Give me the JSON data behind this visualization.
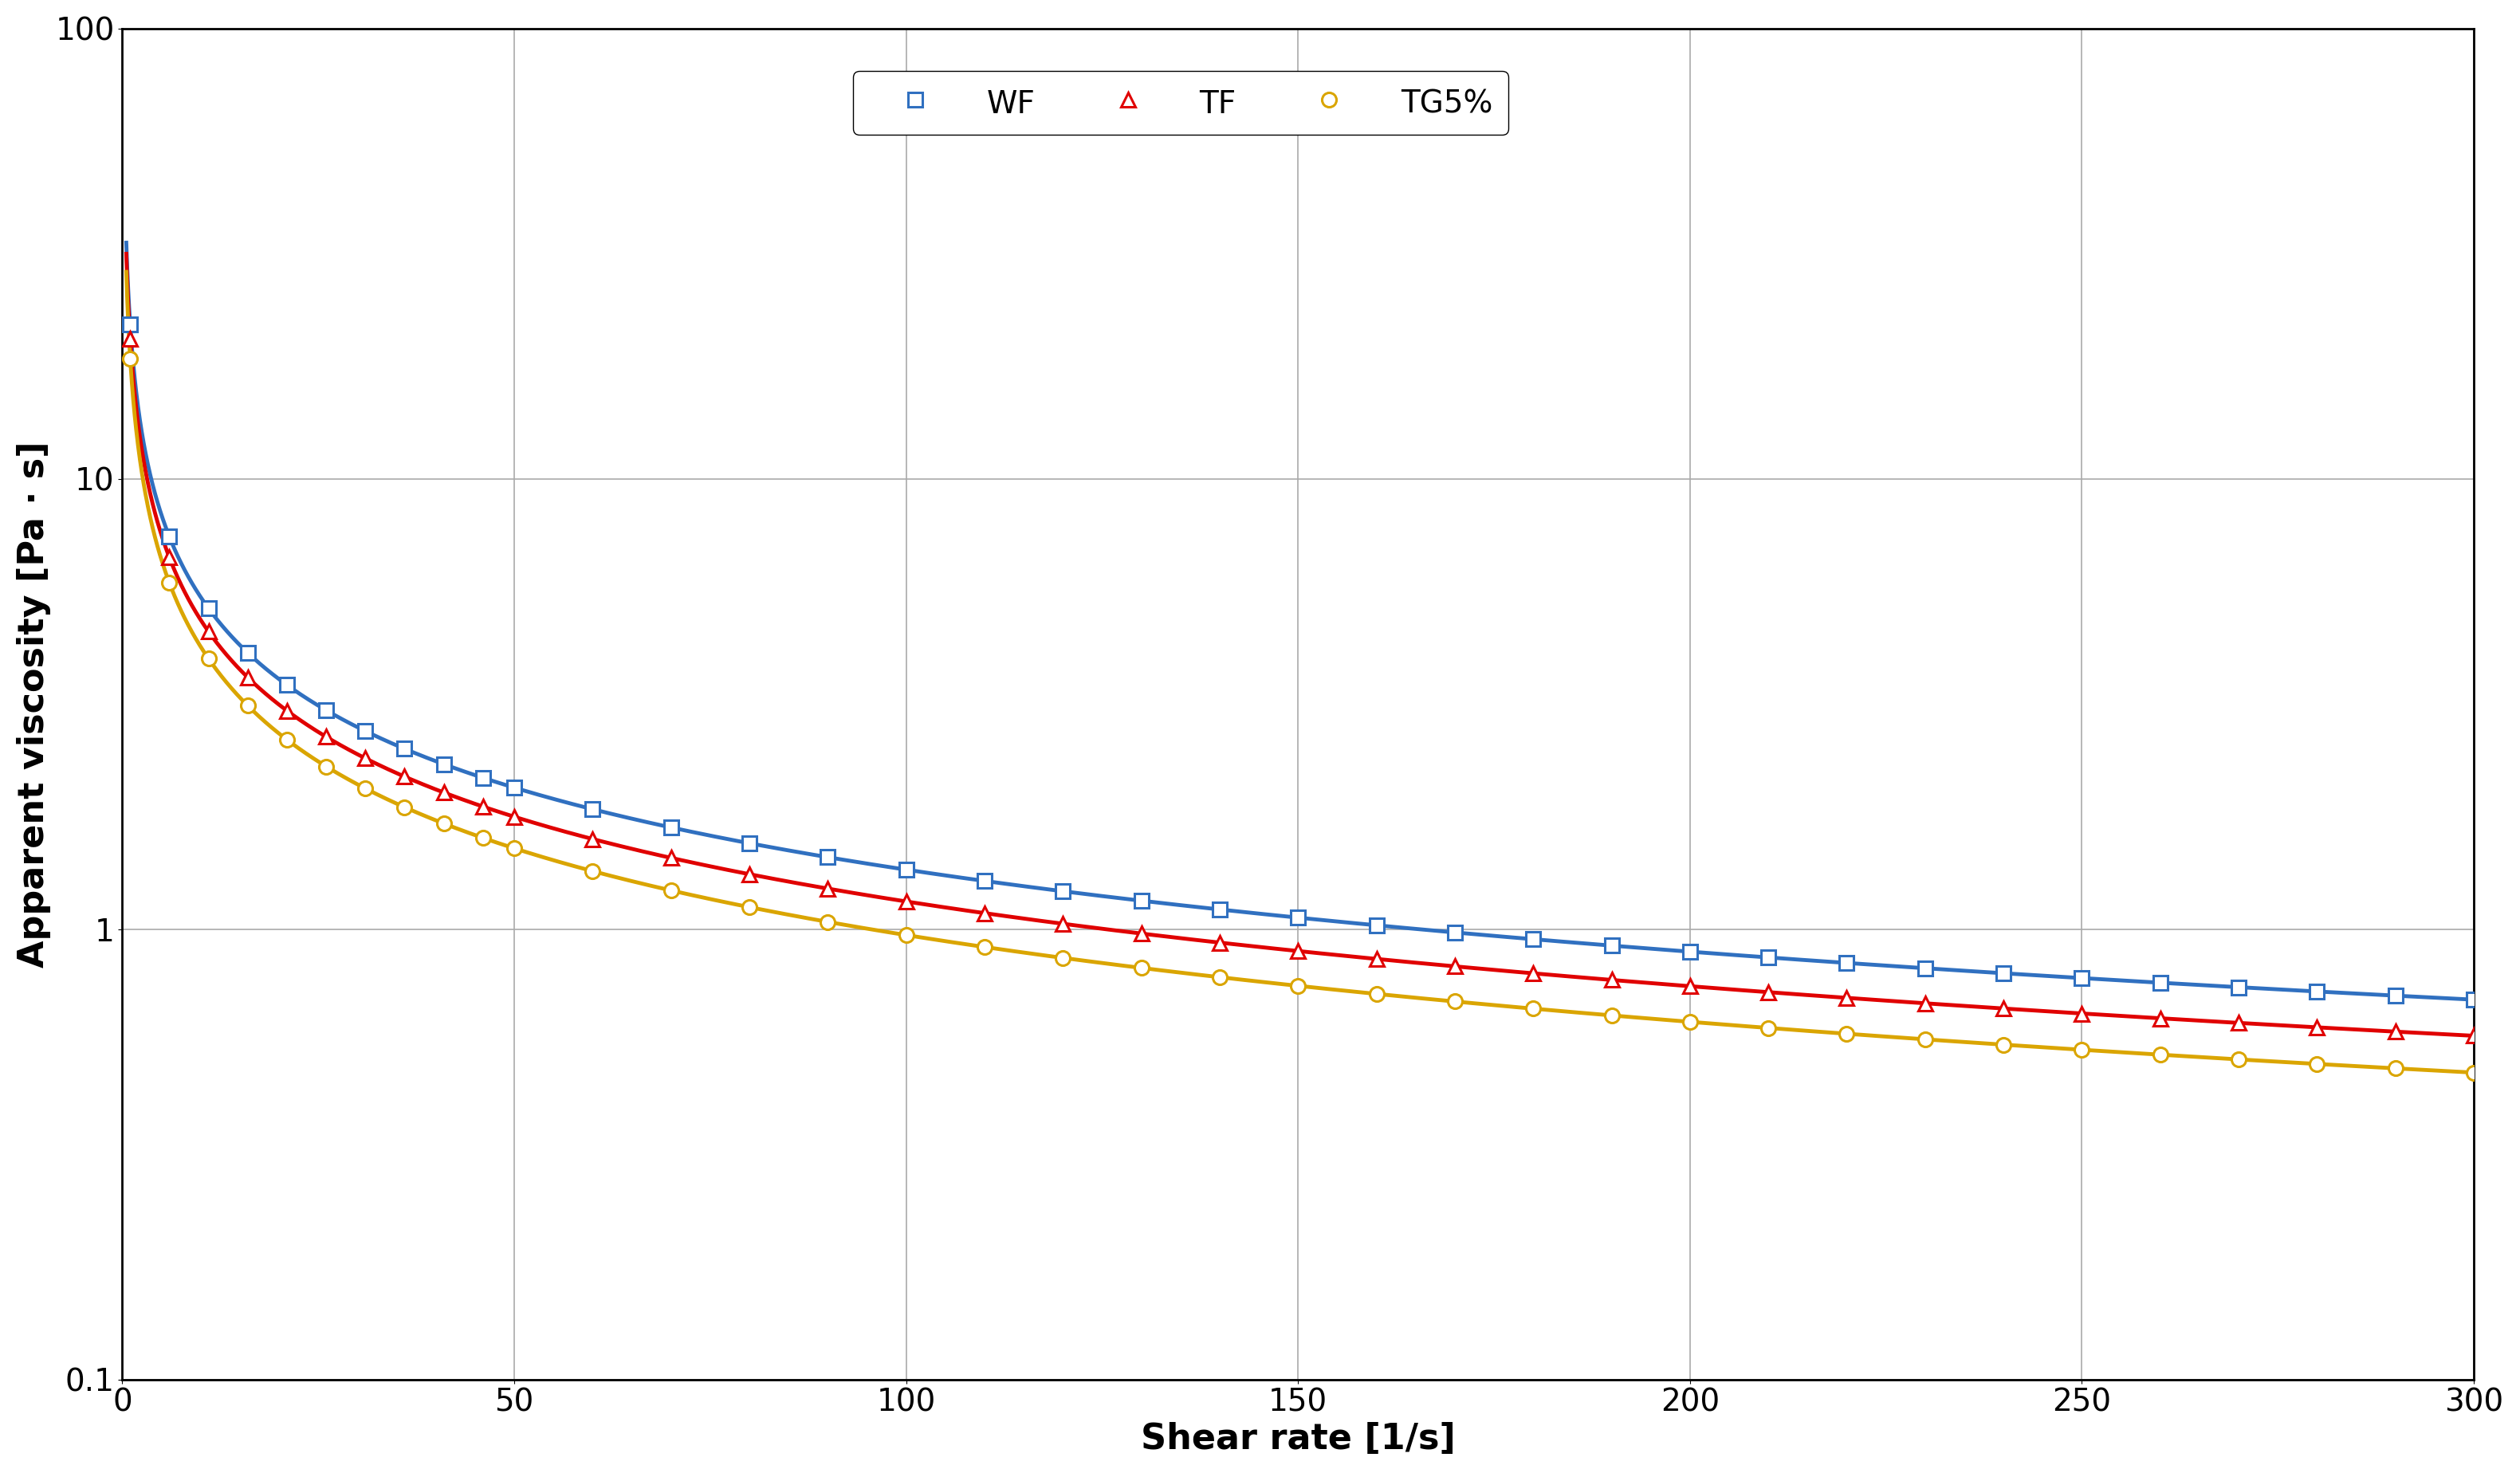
{
  "title": "",
  "xlabel": "Shear rate [1/s]",
  "ylabel": "Apparent viscosity [Pa · s]",
  "xlim": [
    0,
    300
  ],
  "ylim_log": [
    0.1,
    100
  ],
  "series": [
    {
      "label": "WF",
      "color": "#3070C0",
      "marker": "s",
      "K": 22.0,
      "n": 0.395
    },
    {
      "label": "TF",
      "color": "#E00000",
      "marker": "^",
      "K": 20.5,
      "n": 0.375
    },
    {
      "label": "TG5%",
      "color": "#DAA500",
      "marker": "o",
      "K": 18.5,
      "n": 0.36
    }
  ],
  "background_color": "#ffffff",
  "grid_color": "#aaaaaa",
  "legend_fontsize": 28,
  "axis_label_fontsize": 32,
  "tick_fontsize": 28,
  "line_width": 3.5,
  "marker_size": 13,
  "marker_edge_width": 2.2
}
